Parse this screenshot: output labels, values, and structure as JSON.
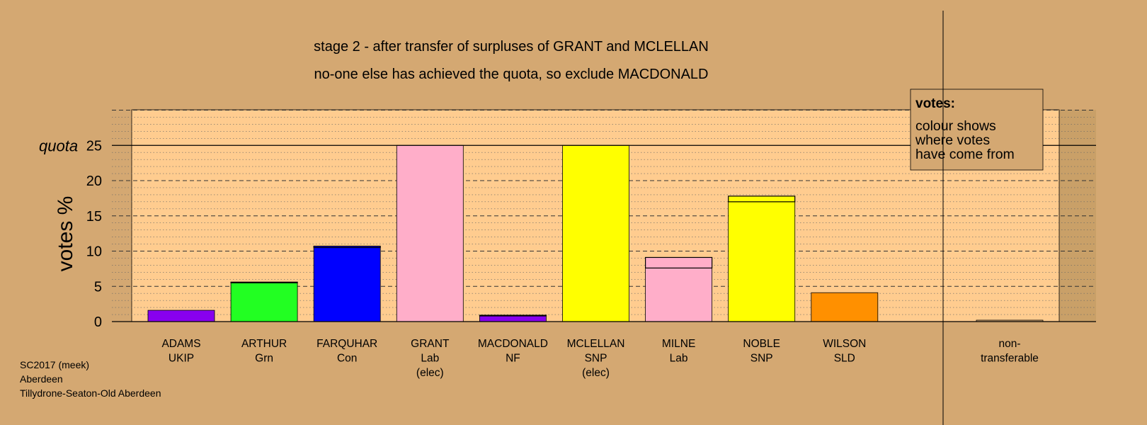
{
  "chart_data": {
    "type": "bar",
    "title_lines": [
      "stage 2 - after transfer of surpluses of GRANT and MCLELLAN",
      "no-one else has achieved the quota, so exclude MACDONALD"
    ],
    "ylabel": "votes %",
    "ylim": [
      0,
      30
    ],
    "yticks": [
      0,
      5,
      10,
      15,
      20,
      25
    ],
    "quota": {
      "label": "quota",
      "value": 25
    },
    "grid": "dashed major every 5, dotted minor every 1",
    "categories": [
      {
        "lines": [
          "ADAMS",
          "UKIP"
        ],
        "segments": [
          {
            "value": 1.6,
            "color": "#8800EE"
          }
        ]
      },
      {
        "lines": [
          "ARTHUR",
          "Grn"
        ],
        "segments": [
          {
            "value": 5.5,
            "color": "#22FF22"
          },
          {
            "value": 0.1,
            "color": "#22FF22"
          }
        ]
      },
      {
        "lines": [
          "FARQUHAR",
          "Con"
        ],
        "segments": [
          {
            "value": 10.5,
            "color": "#0000FF"
          },
          {
            "value": 0.2,
            "color": "#0000FF"
          }
        ]
      },
      {
        "lines": [
          "GRANT",
          "Lab",
          "(elec)"
        ],
        "segments": [
          {
            "value": 25,
            "color": "#FFAEC9"
          }
        ]
      },
      {
        "lines": [
          "MACDONALD",
          "NF"
        ],
        "segments": [
          {
            "value": 0.8,
            "color": "#8800EE"
          },
          {
            "value": 0.1,
            "color": "#8800EE"
          }
        ]
      },
      {
        "lines": [
          "MCLELLAN",
          "SNP",
          "(elec)"
        ],
        "segments": [
          {
            "value": 25,
            "color": "#FFFF00"
          }
        ]
      },
      {
        "lines": [
          "MILNE",
          "Lab"
        ],
        "segments": [
          {
            "value": 7.6,
            "color": "#FFAEC9"
          },
          {
            "value": 1.5,
            "color": "#FFAEC9"
          }
        ]
      },
      {
        "lines": [
          "NOBLE",
          "SNP"
        ],
        "segments": [
          {
            "value": 17.0,
            "color": "#FFFF00"
          },
          {
            "value": 0.8,
            "color": "#FFFF00"
          }
        ]
      },
      {
        "lines": [
          "WILSON",
          "SLD"
        ],
        "segments": [
          {
            "value": 4.1,
            "color": "#FF9000"
          }
        ]
      },
      {
        "lines": [
          "non-",
          "transferable"
        ],
        "separate": true,
        "segments": [
          {
            "value": 0.2,
            "color": "#D4A872"
          }
        ]
      }
    ],
    "legend": {
      "title": "votes:",
      "lines": [
        "colour shows",
        "where votes",
        "have come from"
      ]
    }
  },
  "footer": [
    "SC2017 (meek)",
    "Aberdeen",
    "Tillydrone-Seaton-Old Aberdeen"
  ],
  "colors": {
    "background": "#D4A872",
    "plot_area": "#FFCC8F",
    "right_band": "#C9A068"
  }
}
